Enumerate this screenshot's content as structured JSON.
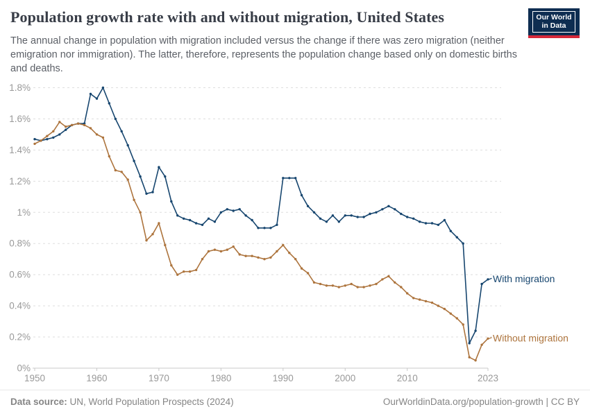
{
  "header": {
    "title": "Population growth rate with and without migration, United States",
    "subtitle": "The annual change in population with migration included versus the change if there was zero migration (neither emigration nor immigration). The latter, therefore, represents the population change based only on domestic births and deaths.",
    "logo": {
      "line1": "Our World",
      "line2": "in Data",
      "bg_color": "#0e2d51",
      "stripe_color": "#d62839"
    }
  },
  "chart_data": {
    "type": "line",
    "title": "Population growth rate with and without migration, United States",
    "xlabel": "",
    "ylabel": "",
    "grid": true,
    "legend_position": "end-of-line",
    "ylim": [
      0,
      1.8
    ],
    "yticks": [
      {
        "value": 0,
        "label": "0%"
      },
      {
        "value": 0.2,
        "label": "0.2%"
      },
      {
        "value": 0.4,
        "label": "0.4%"
      },
      {
        "value": 0.6,
        "label": "0.6%"
      },
      {
        "value": 0.8,
        "label": "0.8%"
      },
      {
        "value": 1.0,
        "label": "1%"
      },
      {
        "value": 1.2,
        "label": "1.2%"
      },
      {
        "value": 1.4,
        "label": "1.4%"
      },
      {
        "value": 1.6,
        "label": "1.6%"
      },
      {
        "value": 1.8,
        "label": "1.8%"
      }
    ],
    "xticks": [
      1950,
      1960,
      1970,
      1980,
      1990,
      2000,
      2010,
      2023
    ],
    "x": [
      1950,
      1951,
      1952,
      1953,
      1954,
      1955,
      1956,
      1957,
      1958,
      1959,
      1960,
      1961,
      1962,
      1963,
      1964,
      1965,
      1966,
      1967,
      1968,
      1969,
      1970,
      1971,
      1972,
      1973,
      1974,
      1975,
      1976,
      1977,
      1978,
      1979,
      1980,
      1981,
      1982,
      1983,
      1984,
      1985,
      1986,
      1987,
      1988,
      1989,
      1990,
      1991,
      1992,
      1993,
      1994,
      1995,
      1996,
      1997,
      1998,
      1999,
      2000,
      2001,
      2002,
      2003,
      2004,
      2005,
      2006,
      2007,
      2008,
      2009,
      2010,
      2011,
      2012,
      2013,
      2014,
      2015,
      2016,
      2017,
      2018,
      2019,
      2020,
      2021,
      2022,
      2023
    ],
    "series": [
      {
        "name": "With migration",
        "color": "#17466f",
        "values": [
          1.47,
          1.46,
          1.47,
          1.48,
          1.5,
          1.53,
          1.56,
          1.57,
          1.57,
          1.76,
          1.73,
          1.8,
          1.7,
          1.6,
          1.52,
          1.43,
          1.33,
          1.23,
          1.12,
          1.13,
          1.29,
          1.23,
          1.07,
          0.98,
          0.96,
          0.95,
          0.93,
          0.92,
          0.96,
          0.94,
          1.0,
          1.02,
          1.01,
          1.02,
          0.98,
          0.95,
          0.9,
          0.9,
          0.9,
          0.92,
          1.22,
          1.22,
          1.22,
          1.11,
          1.04,
          1.0,
          0.96,
          0.94,
          0.98,
          0.94,
          0.98,
          0.98,
          0.97,
          0.97,
          0.99,
          1.0,
          1.02,
          1.04,
          1.02,
          0.99,
          0.97,
          0.96,
          0.94,
          0.93,
          0.93,
          0.92,
          0.95,
          0.88,
          0.84,
          0.8,
          0.16,
          0.24,
          0.54,
          0.57
        ]
      },
      {
        "name": "Without migration",
        "color": "#ad743d",
        "values": [
          1.44,
          1.46,
          1.49,
          1.52,
          1.58,
          1.55,
          1.56,
          1.57,
          1.56,
          1.54,
          1.5,
          1.48,
          1.36,
          1.27,
          1.26,
          1.21,
          1.08,
          1.0,
          0.82,
          0.86,
          0.93,
          0.79,
          0.66,
          0.6,
          0.62,
          0.62,
          0.63,
          0.7,
          0.75,
          0.76,
          0.75,
          0.76,
          0.78,
          0.73,
          0.72,
          0.72,
          0.71,
          0.7,
          0.71,
          0.75,
          0.79,
          0.74,
          0.7,
          0.64,
          0.61,
          0.55,
          0.54,
          0.53,
          0.53,
          0.52,
          0.53,
          0.54,
          0.52,
          0.52,
          0.53,
          0.54,
          0.57,
          0.59,
          0.55,
          0.52,
          0.48,
          0.45,
          0.44,
          0.43,
          0.42,
          0.4,
          0.38,
          0.35,
          0.32,
          0.28,
          0.07,
          0.05,
          0.15,
          0.19
        ]
      }
    ],
    "colors": {
      "grid": "#dddddd",
      "axis_line": "#c8c8c8",
      "tick_label": "#999999"
    }
  },
  "footer": {
    "source_label": "Data source:",
    "source_text": " UN, World Population Prospects (2024)",
    "credit": "OurWorldinData.org/population-growth | CC BY"
  }
}
